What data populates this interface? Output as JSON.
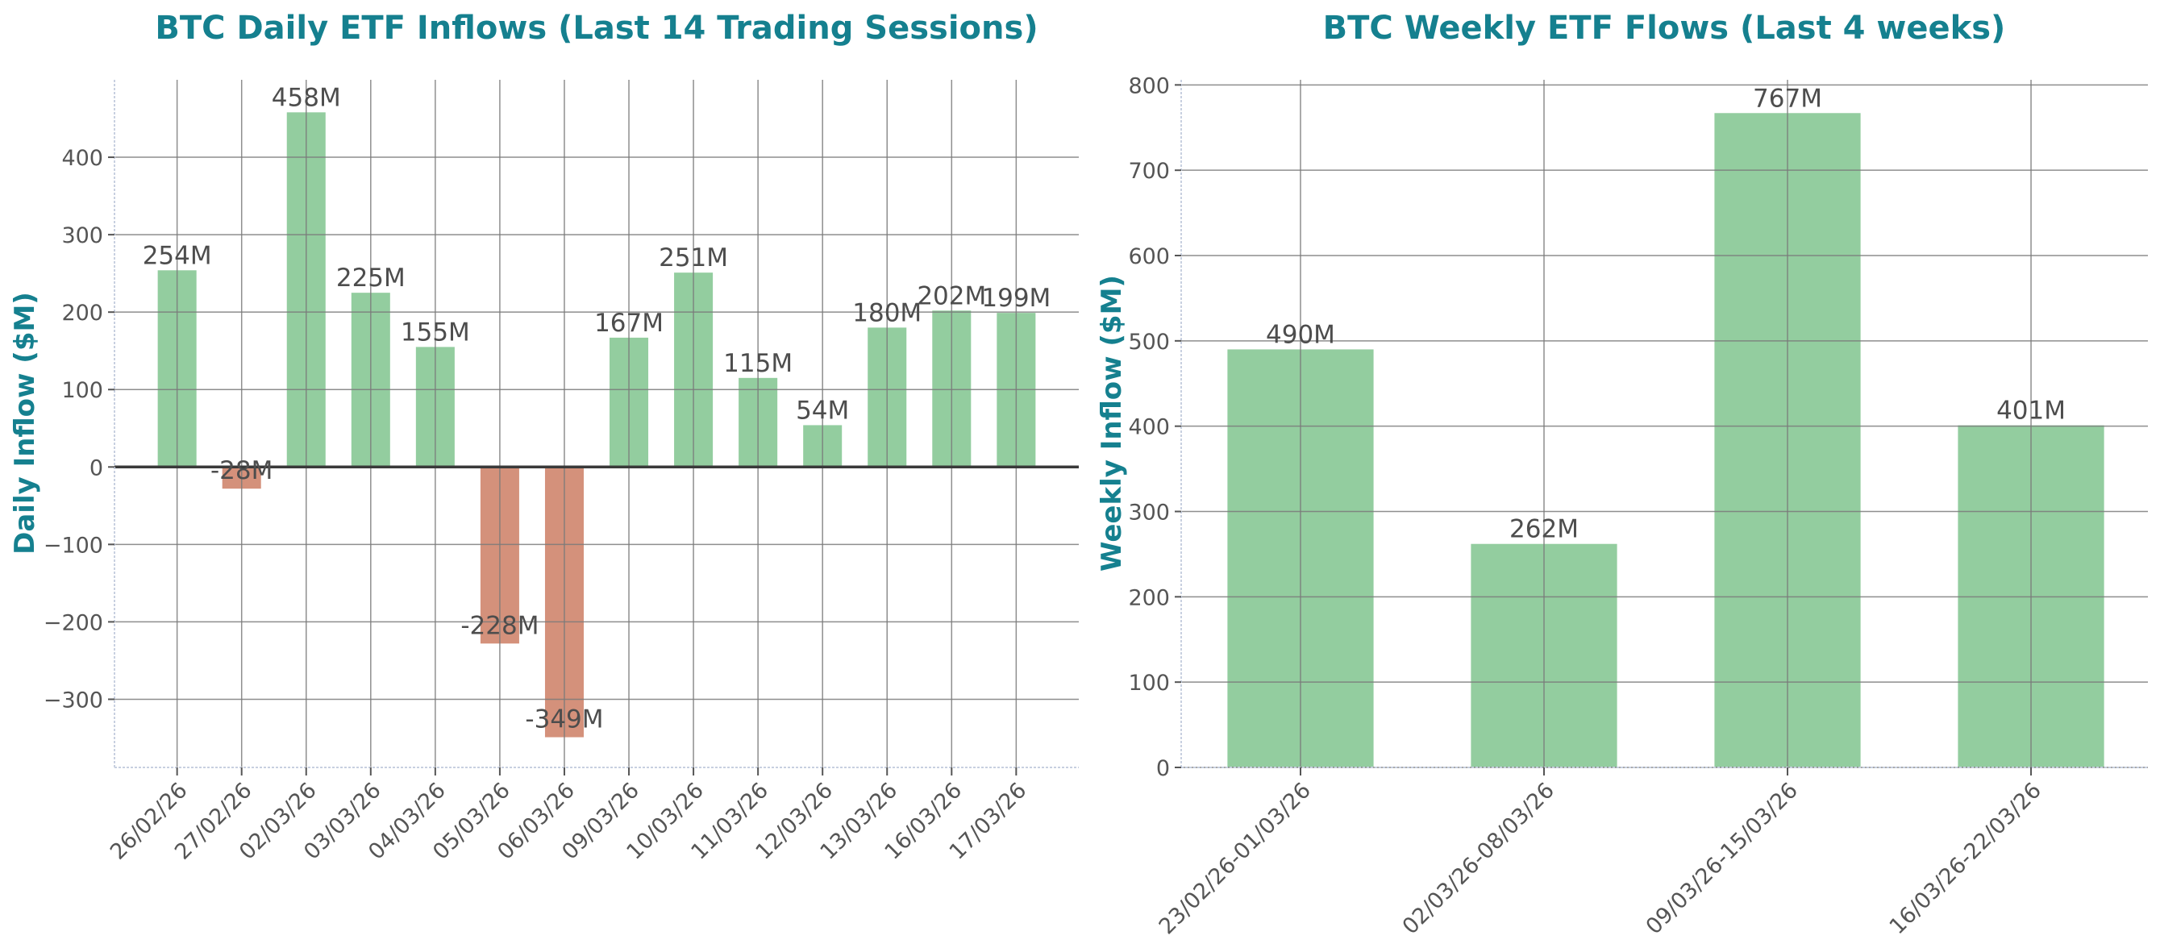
{
  "colors": {
    "title": "#15808f",
    "positive": "#93cd9f",
    "negative": "#d4917b",
    "grid": "#7a7a7a",
    "zero_line": "#3a3a3a",
    "spine": "#c8d0e0",
    "tick_text": "#555555"
  },
  "chart_data": [
    {
      "type": "bar",
      "title": "BTC Daily ETF Inflows (Last 14 Trading Sessions)",
      "xlabel": "",
      "ylabel": "Daily Inflow ($M)",
      "categories": [
        "26/02/26",
        "27/02/26",
        "02/03/26",
        "03/03/26",
        "04/03/26",
        "05/03/26",
        "06/03/26",
        "09/03/26",
        "10/03/26",
        "11/03/26",
        "12/03/26",
        "13/03/26",
        "16/03/26",
        "17/03/26"
      ],
      "values": [
        254,
        -28,
        458,
        225,
        155,
        -228,
        -349,
        167,
        251,
        115,
        54,
        180,
        202,
        199
      ],
      "data_labels": [
        "254M",
        "-28M",
        "458M",
        "225M",
        "155M",
        "-228M",
        "-349M",
        "167M",
        "251M",
        "115M",
        "54M",
        "180M",
        "202M",
        "199M"
      ],
      "ylim": [
        -388,
        500
      ],
      "yticks": [
        -300,
        -200,
        -100,
        0,
        100,
        200,
        300,
        400
      ],
      "ytick_labels": [
        "−300",
        "−200",
        "−100",
        "0",
        "100",
        "200",
        "300",
        "400"
      ],
      "grid": true,
      "zero_line": true
    },
    {
      "type": "bar",
      "title": "BTC Weekly ETF Flows (Last 4 weeks)",
      "xlabel": "",
      "ylabel": "Weekly Inflow ($M)",
      "categories": [
        "23/02/26-01/03/26",
        "02/03/26-08/03/26",
        "09/03/26-15/03/26",
        "16/03/26-22/03/26"
      ],
      "values": [
        490,
        262,
        767,
        401
      ],
      "data_labels": [
        "490M",
        "262M",
        "767M",
        "401M"
      ],
      "ylim": [
        0,
        806
      ],
      "yticks": [
        0,
        100,
        200,
        300,
        400,
        500,
        600,
        700,
        800
      ],
      "ytick_labels": [
        "0",
        "100",
        "200",
        "300",
        "400",
        "500",
        "600",
        "700",
        "800"
      ],
      "grid": true
    }
  ]
}
